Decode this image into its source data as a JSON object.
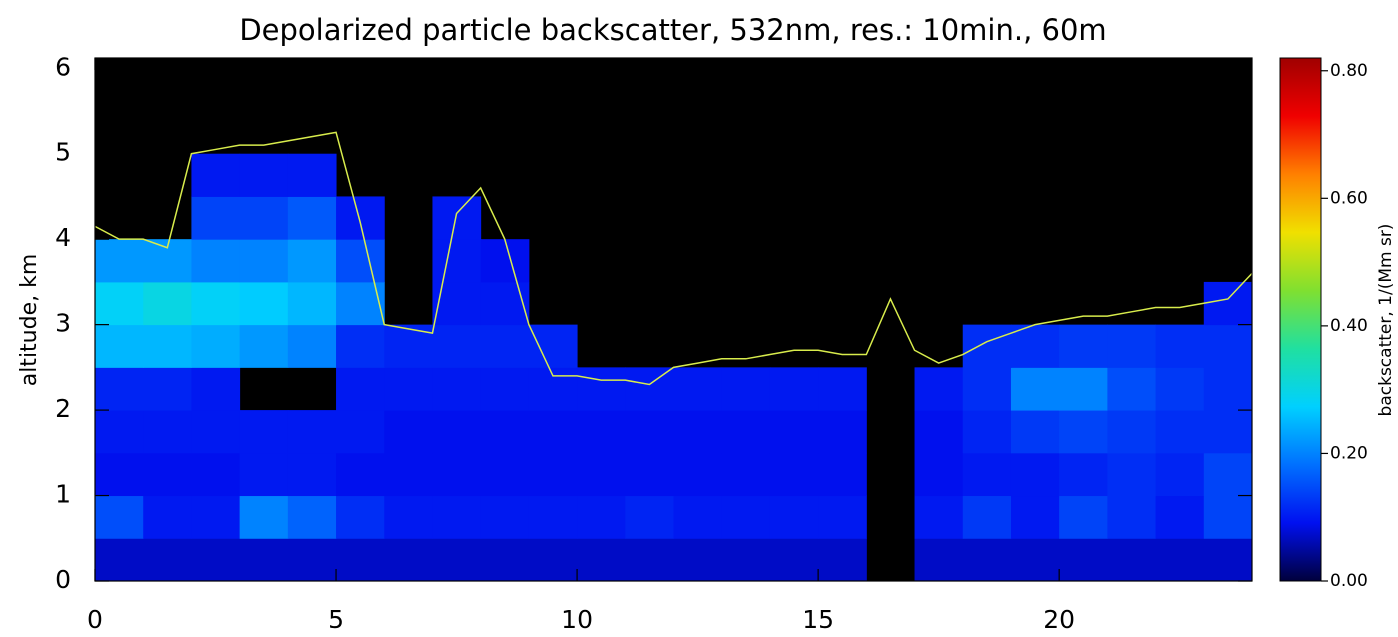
{
  "chart_data": {
    "type": "heatmap",
    "title": "Depolarized particle backscatter, 532nm, res.: 10min., 60m",
    "y_label": "altitude, km",
    "colorbar_label": "backscatter, 1/(Mm sr)",
    "xlim": [
      0,
      24
    ],
    "ylim": [
      0,
      6.12
    ],
    "xticks": [
      0,
      5,
      10,
      15,
      20
    ],
    "yticks": [
      0,
      1,
      2,
      3,
      4,
      5,
      6
    ],
    "zlim": [
      0,
      0.82
    ],
    "zticks": [
      {
        "value": 0,
        "label": "0.00"
      },
      {
        "value": 0.2,
        "label": "0.20"
      },
      {
        "value": 0.4,
        "label": "0.40"
      },
      {
        "value": 0.6,
        "label": "0.60"
      },
      {
        "value": 0.8,
        "label": "0.80"
      }
    ],
    "colormap": [
      "#00003c",
      "#0010f0",
      "#0070ff",
      "#00d0ff",
      "#20e0a0",
      "#80e030",
      "#f0e000",
      "#ff8000",
      "#f00000",
      "#a00000"
    ],
    "missing_color": "#000000",
    "xbins": [
      0,
      1,
      2,
      3,
      4,
      5,
      6,
      7,
      8,
      9,
      10,
      11,
      12,
      13,
      14,
      15,
      16,
      17,
      18,
      19,
      20,
      21,
      22,
      23,
      24
    ],
    "ybins": [
      0,
      0.5,
      1,
      1.5,
      2,
      2.5,
      3,
      3.5,
      4,
      4.5,
      5
    ],
    "z": [
      [
        0.07,
        0.07,
        0.07,
        0.07,
        0.07,
        0.07,
        0.07,
        0.07,
        0.07,
        0.07,
        0.07,
        0.07,
        0.07,
        0.07,
        0.07,
        0.07,
        null,
        0.07,
        0.07,
        0.07,
        0.07,
        0.07,
        0.07,
        0.07
      ],
      [
        0.15,
        0.1,
        0.1,
        0.2,
        0.17,
        0.12,
        0.1,
        0.1,
        0.1,
        0.1,
        0.1,
        0.11,
        0.1,
        0.1,
        0.1,
        0.1,
        null,
        0.1,
        0.13,
        0.1,
        0.14,
        0.12,
        0.1,
        0.14
      ],
      [
        0.09,
        0.09,
        0.09,
        0.1,
        0.1,
        0.09,
        0.09,
        0.09,
        0.09,
        0.09,
        0.09,
        0.09,
        0.09,
        0.09,
        0.09,
        0.09,
        null,
        0.09,
        0.1,
        0.1,
        0.11,
        0.12,
        0.11,
        0.14
      ],
      [
        0.1,
        0.1,
        0.1,
        0.1,
        0.1,
        0.1,
        0.09,
        0.09,
        0.09,
        0.09,
        0.09,
        0.09,
        0.09,
        0.09,
        0.09,
        0.09,
        null,
        0.09,
        0.11,
        0.13,
        0.14,
        0.13,
        0.12,
        0.12
      ],
      [
        0.11,
        0.11,
        0.1,
        null,
        null,
        0.1,
        0.1,
        0.1,
        0.1,
        0.1,
        0.1,
        0.1,
        0.1,
        0.1,
        0.1,
        0.1,
        null,
        0.1,
        0.12,
        0.2,
        0.2,
        0.15,
        0.13,
        0.12
      ],
      [
        0.25,
        0.25,
        0.24,
        0.22,
        0.2,
        0.12,
        0.11,
        0.11,
        0.11,
        0.11,
        null,
        null,
        null,
        null,
        null,
        null,
        null,
        null,
        0.12,
        0.12,
        0.13,
        0.13,
        0.12,
        0.12
      ],
      [
        0.28,
        0.3,
        0.28,
        0.27,
        0.25,
        0.2,
        null,
        0.1,
        0.1,
        null,
        null,
        null,
        null,
        null,
        null,
        null,
        null,
        null,
        null,
        null,
        null,
        null,
        null,
        0.1
      ],
      [
        0.22,
        0.22,
        0.2,
        0.2,
        0.22,
        0.15,
        null,
        0.1,
        0.09,
        null,
        null,
        null,
        null,
        null,
        null,
        null,
        null,
        null,
        null,
        null,
        null,
        null,
        null,
        null
      ],
      [
        null,
        null,
        0.14,
        0.14,
        0.16,
        0.1,
        null,
        0.1,
        null,
        null,
        null,
        null,
        null,
        null,
        null,
        null,
        null,
        null,
        null,
        null,
        null,
        null,
        null,
        null
      ],
      [
        null,
        null,
        0.1,
        0.1,
        0.1,
        null,
        null,
        null,
        null,
        null,
        null,
        null,
        null,
        null,
        null,
        null,
        null,
        null,
        null,
        null,
        null,
        null,
        null,
        null
      ]
    ],
    "line": {
      "color": "#d8ec4c",
      "x": [
        0,
        0.5,
        1,
        1.5,
        2,
        2.5,
        3,
        3.5,
        4,
        4.5,
        5,
        5.5,
        6,
        6.5,
        7,
        7.5,
        8,
        8.5,
        9,
        9.5,
        10,
        10.5,
        11,
        11.5,
        12,
        12.5,
        13,
        13.5,
        14,
        14.5,
        15,
        15.5,
        16,
        16.5,
        17,
        17.5,
        18,
        18.5,
        19,
        19.5,
        20,
        20.5,
        21,
        21.5,
        22,
        22.5,
        23,
        23.5,
        24
      ],
      "values": [
        4.15,
        4.0,
        4.0,
        3.9,
        5.0,
        5.05,
        5.1,
        5.1,
        5.15,
        5.2,
        5.25,
        4.2,
        3.0,
        2.95,
        2.9,
        4.3,
        4.6,
        4.0,
        3.0,
        2.4,
        2.4,
        2.35,
        2.35,
        2.3,
        2.5,
        2.55,
        2.6,
        2.6,
        2.65,
        2.7,
        2.7,
        2.65,
        2.65,
        3.3,
        2.7,
        2.55,
        2.65,
        2.8,
        2.9,
        3.0,
        3.05,
        3.1,
        3.1,
        3.15,
        3.2,
        3.2,
        3.25,
        3.3,
        3.6
      ]
    }
  }
}
